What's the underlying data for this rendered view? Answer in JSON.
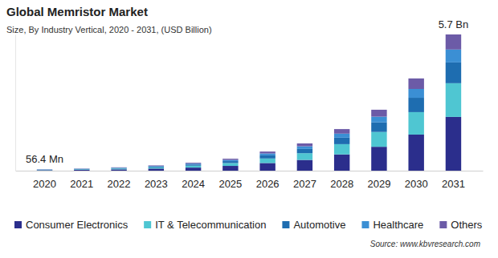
{
  "chart_data": {
    "type": "bar",
    "title": "Global Memristor Market",
    "subtitle": "Size, By Industry Vertical, 2020 - 2031, (USD Billion)",
    "source": "Source: www.kbvresearch.com",
    "stacked": true,
    "legend": "bottom",
    "grid": false,
    "tick_labels": "x",
    "categories": [
      "2020",
      "2021",
      "2022",
      "2023",
      "2024",
      "2025",
      "2026",
      "2027",
      "2028",
      "2029",
      "2030",
      "2031"
    ],
    "ylim": [
      0,
      5.7
    ],
    "series": [
      {
        "name": "Consumer Electronics",
        "color": "#2b2e8c",
        "values": [
          0.023,
          0.036,
          0.055,
          0.09,
          0.13,
          0.2,
          0.32,
          0.45,
          0.68,
          1.0,
          1.51,
          2.25
        ]
      },
      {
        "name": "IT & Telecommunication",
        "color": "#4fc6d2",
        "values": [
          0.014,
          0.022,
          0.035,
          0.05,
          0.08,
          0.12,
          0.19,
          0.28,
          0.43,
          0.62,
          0.94,
          1.41
        ]
      },
      {
        "name": "Automotive",
        "color": "#1e6db0",
        "values": [
          0.009,
          0.014,
          0.022,
          0.035,
          0.05,
          0.08,
          0.13,
          0.18,
          0.27,
          0.4,
          0.6,
          0.87
        ]
      },
      {
        "name": "Healthcare",
        "color": "#3b8fd4",
        "values": [
          0.005,
          0.008,
          0.013,
          0.02,
          0.035,
          0.05,
          0.08,
          0.11,
          0.17,
          0.24,
          0.37,
          0.54
        ]
      },
      {
        "name": "Others",
        "color": "#6c5ba7",
        "values": [
          0.0054,
          0.01,
          0.015,
          0.025,
          0.035,
          0.05,
          0.08,
          0.12,
          0.19,
          0.29,
          0.44,
          0.63
        ]
      }
    ],
    "annotations": [
      {
        "text": "56.4 Mn",
        "x": "2020",
        "value": 0.0564
      },
      {
        "text": "5.7 Bn",
        "x": "2031",
        "value": 5.7
      }
    ]
  }
}
